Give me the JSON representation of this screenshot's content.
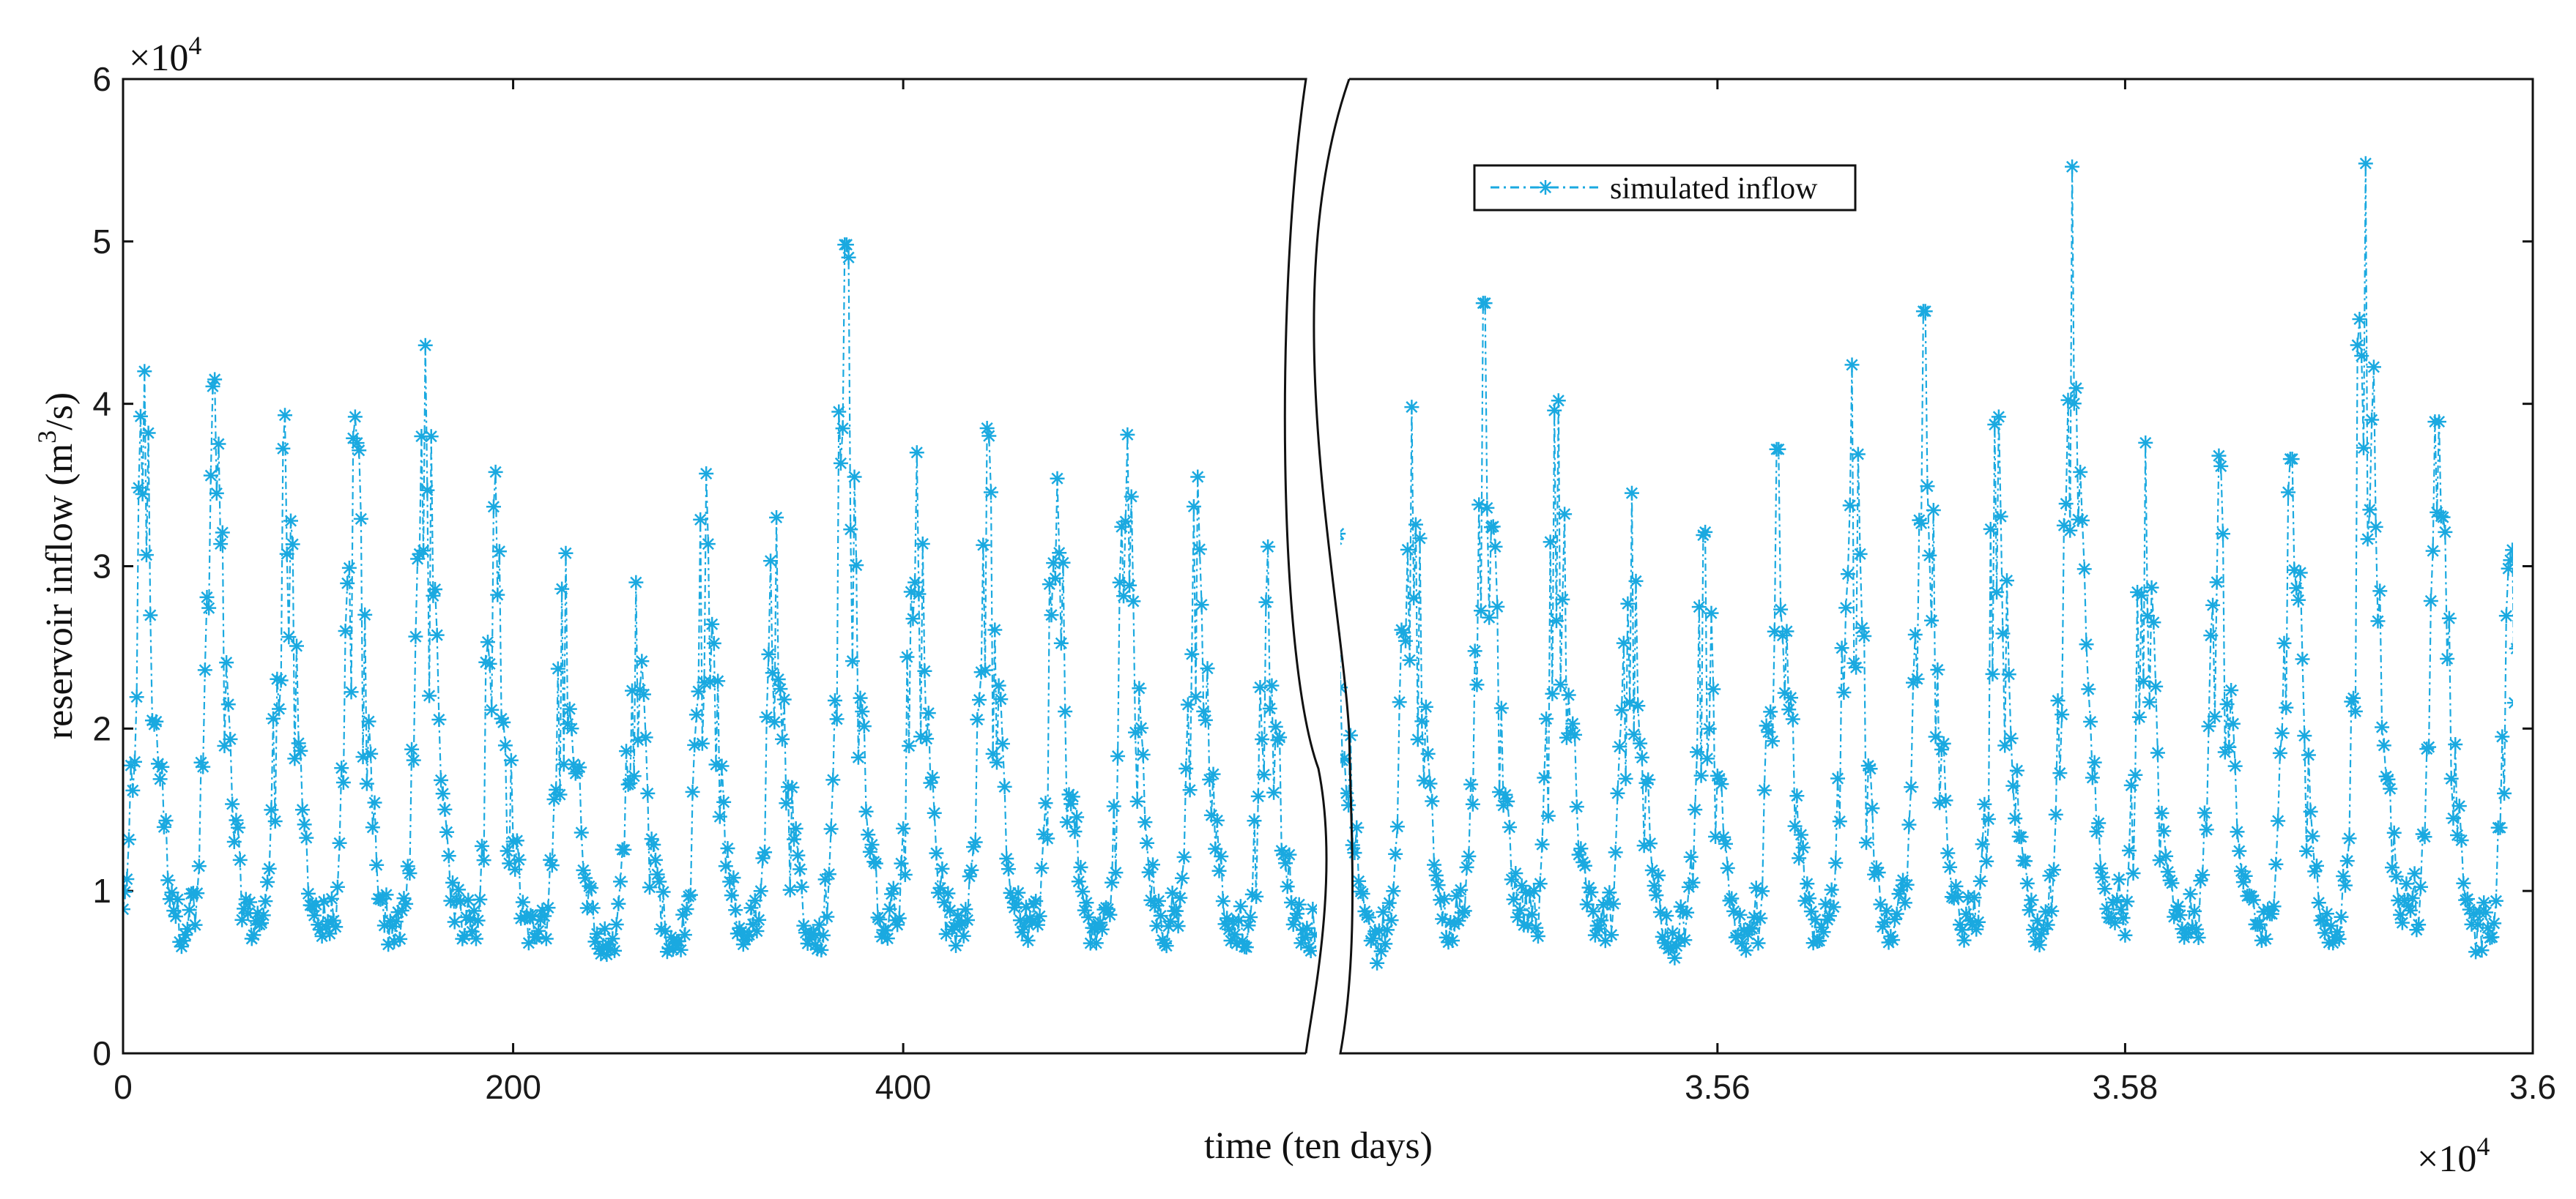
{
  "chart_data": {
    "type": "line",
    "title": "",
    "xlabel": "time (ten days)",
    "ylabel_main": "reservoir inflow (m",
    "ylabel_sup": "3",
    "ylabel_tail": "/s)",
    "y_multiplier": "×10",
    "y_multiplier_exp": "4",
    "x_multiplier": "×10",
    "x_multiplier_exp": "4",
    "ylim": [
      0,
      60000
    ],
    "y_ticks": [
      0,
      10000,
      20000,
      30000,
      40000,
      50000,
      60000
    ],
    "y_tick_labels": [
      "0",
      "1",
      "2",
      "3",
      "4",
      "5",
      "6"
    ],
    "left_panel": {
      "xlim": [
        0,
        611
      ],
      "x_ticks": [
        0,
        200,
        400
      ],
      "x_tick_labels": [
        "0",
        "200",
        "400"
      ]
    },
    "right_panel": {
      "xlim": [
        35415,
        36000
      ],
      "x_ticks": [
        35600,
        35800,
        36000
      ],
      "x_tick_labels": [
        "3.56",
        "3.58",
        "3.6"
      ]
    },
    "legend": {
      "label": "simulated inflow",
      "placement": "top-center of right panel"
    },
    "series": [
      {
        "name": "simulated inflow",
        "color": "#1aa9e0",
        "marker": "asterisk",
        "line_style": "dash-dot",
        "period": 36,
        "left_peaks": [
          42000,
          41500,
          39300,
          39200,
          43600,
          35800,
          30800,
          29000,
          35700,
          33000,
          49800,
          37000,
          38500,
          35400,
          38100,
          35500,
          31200
        ],
        "right_peaks": [
          32000,
          39800,
          46200,
          40200,
          34500,
          32100,
          37200,
          42400,
          45700,
          39200,
          54600,
          37600,
          36800,
          36600,
          54800,
          38900,
          31000
        ]
      }
    ]
  }
}
